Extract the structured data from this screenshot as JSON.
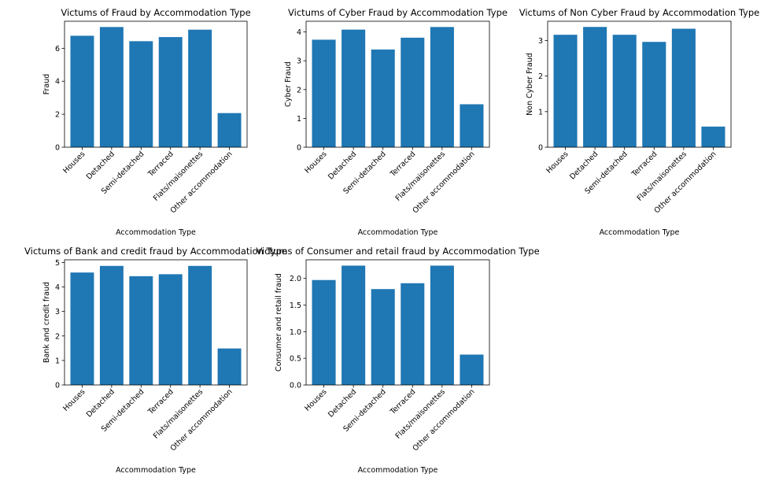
{
  "chart_data": [
    {
      "type": "bar",
      "title": "Victums of Fraud by Accommodation Type",
      "xlabel": "Accommodation Type",
      "ylabel": "Fraud",
      "categories": [
        "Houses",
        "Detached",
        "Semi-detached",
        "Terraced",
        "Flats/maisonettes",
        "Other accommodation"
      ],
      "values": [
        6.76,
        7.29,
        6.43,
        6.68,
        7.13,
        2.07
      ],
      "ylim": [
        0,
        7.64
      ],
      "yticks": [
        0,
        2,
        4,
        6
      ],
      "ytick_labels": [
        "0",
        "2",
        "4",
        "6"
      ],
      "color": "#1f77b4",
      "grid": false
    },
    {
      "type": "bar",
      "title": "Victums of Cyber Fraud by Accommodation Type",
      "xlabel": "Accommodation Type",
      "ylabel": "Cyber Fraud",
      "categories": [
        "Houses",
        "Detached",
        "Semi-detached",
        "Terraced",
        "Flats/maisonettes",
        "Other accommodation"
      ],
      "values": [
        3.73,
        4.08,
        3.39,
        3.8,
        4.17,
        1.49
      ],
      "ylim": [
        0,
        4.37
      ],
      "yticks": [
        0,
        1,
        2,
        3,
        4
      ],
      "ytick_labels": [
        "0",
        "1",
        "2",
        "3",
        "4"
      ],
      "color": "#1f77b4",
      "grid": false
    },
    {
      "type": "bar",
      "title": "Victums of Non Cyber Fraud by Accommodation Type",
      "xlabel": "Accommodation Type",
      "ylabel": "Non Cyber Fraud",
      "categories": [
        "Houses",
        "Detached",
        "Semi-detached",
        "Terraced",
        "Flats/maisonettes",
        "Other accommodation"
      ],
      "values": [
        3.16,
        3.38,
        3.16,
        2.96,
        3.33,
        0.58
      ],
      "ylim": [
        0,
        3.54
      ],
      "yticks": [
        0,
        1,
        2,
        3
      ],
      "ytick_labels": [
        "0",
        "1",
        "2",
        "3"
      ],
      "color": "#1f77b4",
      "grid": false
    },
    {
      "type": "bar",
      "title": "Victums of Bank and credit fraud by Accommodation Type",
      "xlabel": "Accommodation Type",
      "ylabel": "Bank and credit fraud",
      "categories": [
        "Houses",
        "Detached",
        "Semi-detached",
        "Terraced",
        "Flats/maisonettes",
        "Other accommodation"
      ],
      "values": [
        4.59,
        4.86,
        4.44,
        4.52,
        4.86,
        1.49
      ],
      "ylim": [
        0,
        5.11
      ],
      "yticks": [
        0,
        1,
        2,
        3,
        4,
        5
      ],
      "ytick_labels": [
        "0",
        "1",
        "2",
        "3",
        "4",
        "5"
      ],
      "color": "#1f77b4",
      "grid": false
    },
    {
      "type": "bar",
      "title": "Victums of Consumer and retail fraud by Accommodation Type",
      "xlabel": "Accommodation Type",
      "ylabel": "Consumer and retail fraud",
      "categories": [
        "Houses",
        "Detached",
        "Semi-detached",
        "Terraced",
        "Flats/maisonettes",
        "Other accommodation"
      ],
      "values": [
        1.97,
        2.24,
        1.8,
        1.91,
        2.24,
        0.57
      ],
      "ylim": [
        0,
        2.35
      ],
      "yticks": [
        0,
        0.5,
        1.0,
        1.5,
        2.0
      ],
      "ytick_labels": [
        "0.0",
        "0.5",
        "1.0",
        "1.5",
        "2.0"
      ],
      "color": "#1f77b4",
      "grid": false
    }
  ]
}
